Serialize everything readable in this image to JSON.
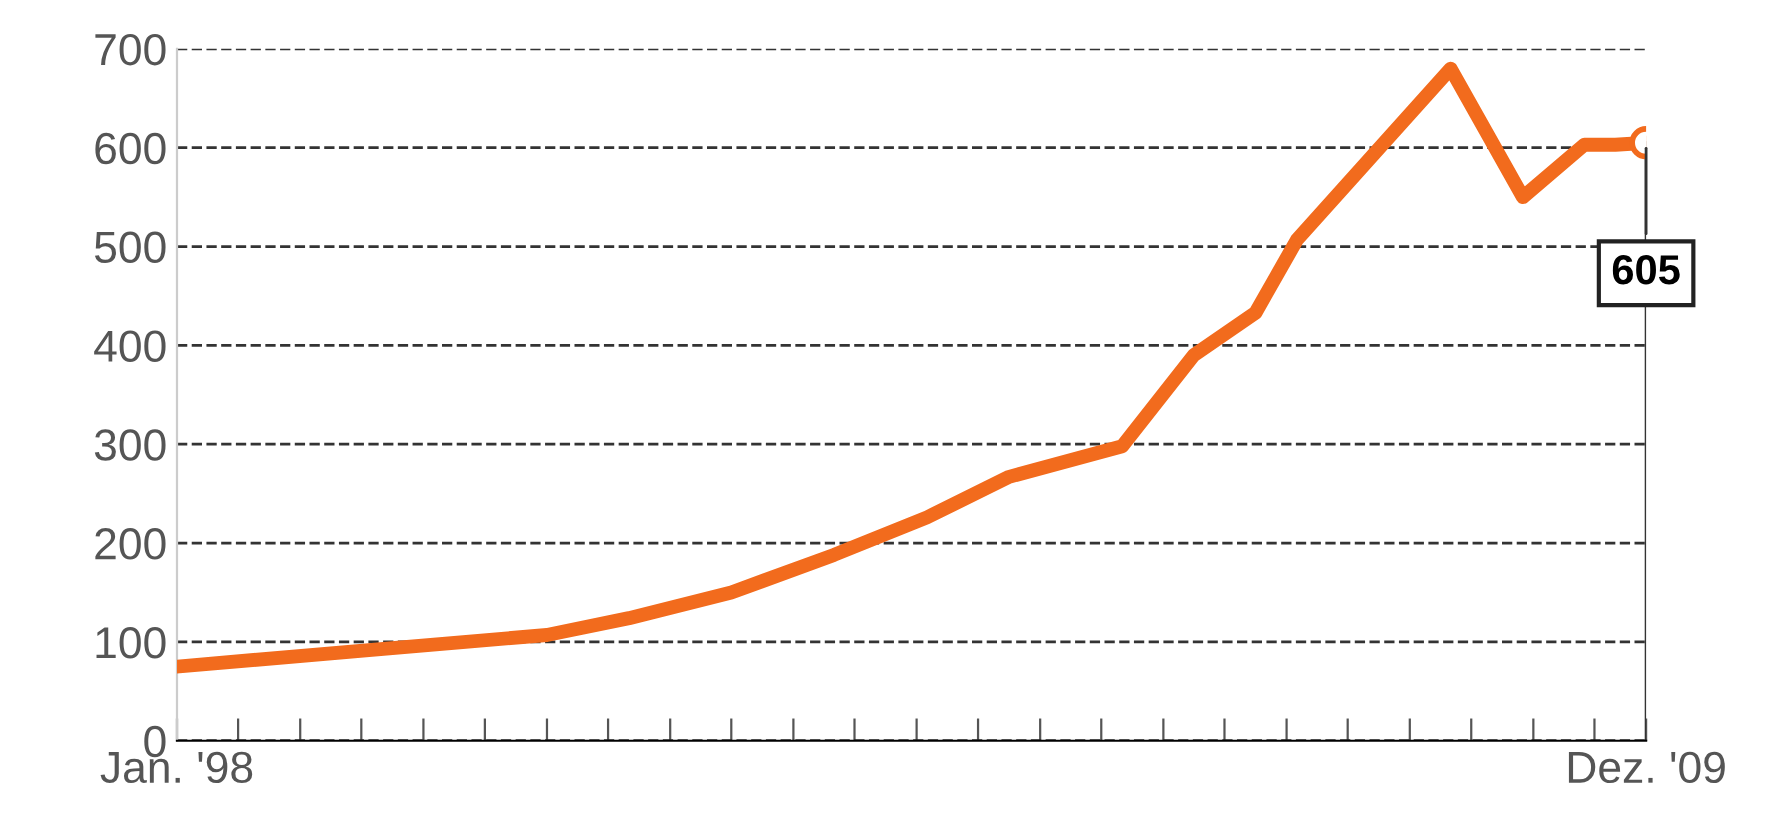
{
  "chart_data": {
    "type": "line",
    "x": [
      "1998-01",
      "1999-08",
      "2001-01",
      "2001-09",
      "2002-07",
      "2003-05",
      "2004-02",
      "2004-10",
      "2005-09",
      "2006-04",
      "2006-10",
      "2007-02",
      "2008-05",
      "2008-12",
      "2009-06",
      "2009-09",
      "2009-12"
    ],
    "series": [
      {
        "color": "#f26b1d",
        "values": [
          75,
          92,
          107,
          124,
          150,
          188,
          226,
          267,
          298,
          390,
          433,
          507,
          680,
          550,
          603,
          603,
          605
        ]
      }
    ],
    "xlim": [
      "1998-01",
      "2009-12"
    ],
    "xticks": [
      {
        "value": "1998-01",
        "label": "Jan. '98"
      },
      {
        "value": "1998-07",
        "label": null
      },
      {
        "value": "1999-01",
        "label": null
      },
      {
        "value": "1999-07",
        "label": null
      },
      {
        "value": "2000-01",
        "label": null
      },
      {
        "value": "2000-07",
        "label": null
      },
      {
        "value": "2001-01",
        "label": null
      },
      {
        "value": "2001-07",
        "label": null
      },
      {
        "value": "2002-01",
        "label": null
      },
      {
        "value": "2002-07",
        "label": null
      },
      {
        "value": "2003-01",
        "label": null
      },
      {
        "value": "2003-07",
        "label": null
      },
      {
        "value": "2004-01",
        "label": null
      },
      {
        "value": "2004-07",
        "label": null
      },
      {
        "value": "2005-01",
        "label": null
      },
      {
        "value": "2005-07",
        "label": null
      },
      {
        "value": "2006-01",
        "label": null
      },
      {
        "value": "2006-07",
        "label": null
      },
      {
        "value": "2007-01",
        "label": null
      },
      {
        "value": "2007-07",
        "label": null
      },
      {
        "value": "2008-01",
        "label": null
      },
      {
        "value": "2008-07",
        "label": null
      },
      {
        "value": "2009-01",
        "label": null
      },
      {
        "value": "2009-07",
        "label": null
      },
      {
        "value": "2009-12",
        "label": "Dez. '09"
      }
    ],
    "ylim": [
      0,
      700
    ],
    "yticks": [
      0,
      100,
      200,
      300,
      400,
      500,
      600,
      700
    ],
    "grid": "y",
    "marker": "none",
    "line_style": "solid",
    "legend": false,
    "annotations": [
      {
        "text": "605",
        "x": "2009-12",
        "y": 605
      }
    ]
  }
}
